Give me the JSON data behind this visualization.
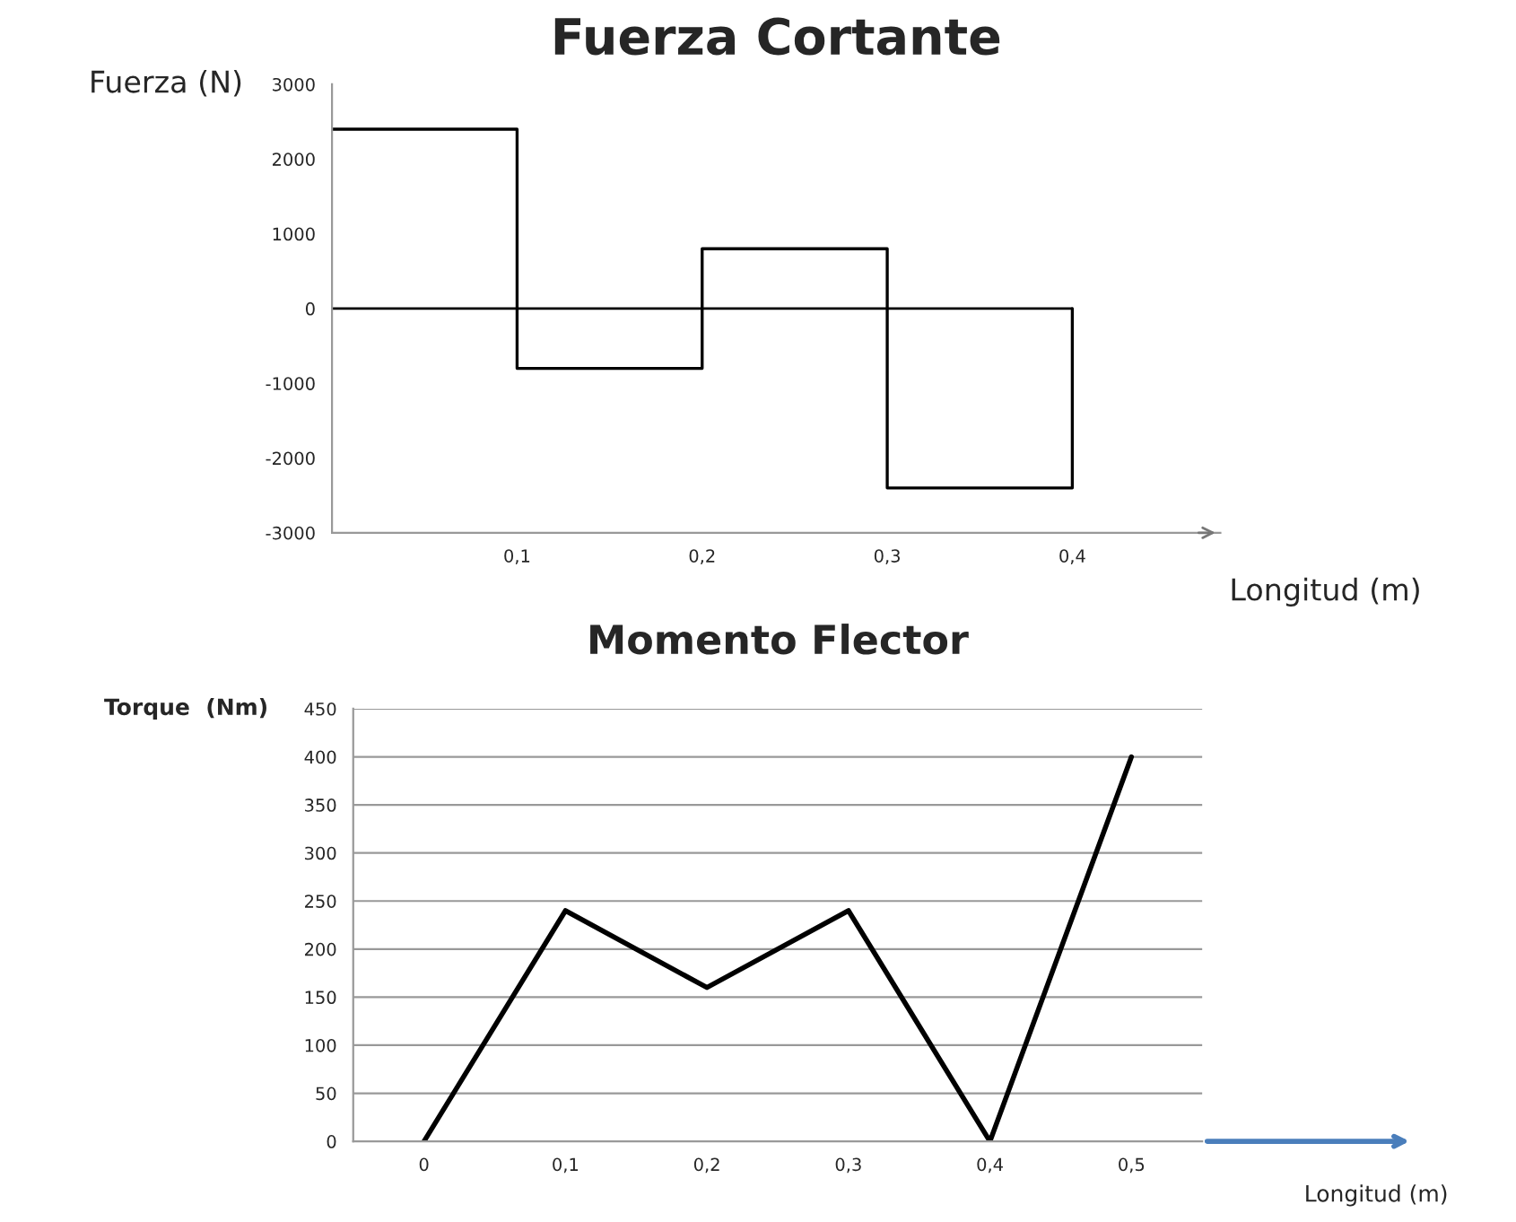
{
  "chart_data": [
    {
      "type": "step",
      "title": "Fuerza Cortante",
      "xlabel": "Longitud (m)",
      "ylabel": "Fuerza (N)",
      "x": [
        0,
        0.1,
        0.2,
        0.3,
        0.4
      ],
      "values": [
        2400,
        -800,
        800,
        -2400,
        0
      ],
      "color": "#000000",
      "xlim": [
        0,
        0.48
      ],
      "xticks": [
        {
          "value": 0.1,
          "label": "0,1"
        },
        {
          "value": 0.2,
          "label": "0,2"
        },
        {
          "value": 0.3,
          "label": "0,3"
        },
        {
          "value": 0.4,
          "label": "0,4"
        }
      ],
      "ylim": [
        -3000,
        3000
      ],
      "yticks": [
        -3000,
        -2000,
        -1000,
        0,
        1000,
        2000,
        3000
      ],
      "ref_lines": [
        {
          "axis": "y",
          "value": 0,
          "label": null,
          "color": "#000000"
        }
      ]
    },
    {
      "type": "line",
      "title": "Momento Flector",
      "xlabel": "Longitud (m)",
      "ylabel": "Torque  (Nm)",
      "categories": [
        "0",
        "0,1",
        "0,2",
        "0,3",
        "0,4",
        "0,5"
      ],
      "values": [
        0,
        240,
        160,
        240,
        0,
        400
      ],
      "color": "#000000",
      "ylim": [
        0,
        450
      ],
      "yticks": [
        0,
        50,
        100,
        150,
        200,
        250,
        300,
        350,
        400,
        450
      ],
      "grid": "y"
    }
  ]
}
